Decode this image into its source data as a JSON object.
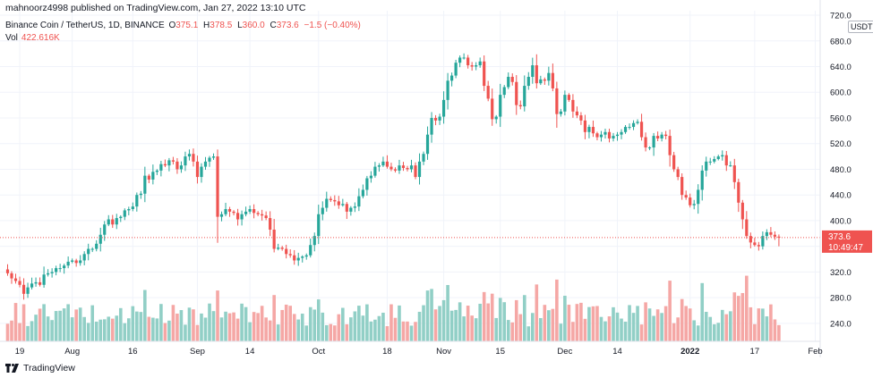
{
  "header": {
    "caption": "mahnoorz4998 published on TradingView.com, Jan 27, 2022 13:10 UTC"
  },
  "legend": {
    "symbol": "Binance Coin / TetherUS, 1D, BINANCE",
    "o_label": "O",
    "o_value": "375.1",
    "h_label": "H",
    "h_value": "378.5",
    "l_label": "L",
    "l_value": "360.0",
    "c_label": "C",
    "c_value": "373.6",
    "change": "−1.5 (−0.40%)",
    "vol_label": "Vol",
    "vol_value": "422.616K"
  },
  "price_axis": {
    "currency": "USDT",
    "last_price": "373.6",
    "countdown": "10:49:47"
  },
  "branding": {
    "name": "TradingView"
  },
  "colors": {
    "up": "#26a69a",
    "down": "#ef5350",
    "vol_up": "#91cfc6",
    "vol_down": "#f5a7a5",
    "grid": "#f0f3fa",
    "axis_text": "#131722"
  },
  "chart_data": {
    "type": "candlestick",
    "symbol": "BNBUSDT",
    "timeframe": "1D",
    "y_range": [
      212,
      727
    ],
    "y_ticks": [
      240,
      280,
      320,
      360,
      400,
      440,
      480,
      520,
      560,
      600,
      640,
      680,
      720
    ],
    "x_ticks": [
      {
        "label": "19",
        "date": "2021-07-19"
      },
      {
        "label": "Aug",
        "date": "2021-08-01"
      },
      {
        "label": "16",
        "date": "2021-08-16"
      },
      {
        "label": "Sep",
        "date": "2021-09-01"
      },
      {
        "label": "14",
        "date": "2021-09-14"
      },
      {
        "label": "Oct",
        "date": "2021-10-01"
      },
      {
        "label": "18",
        "date": "2021-10-18"
      },
      {
        "label": "Nov",
        "date": "2021-11-01"
      },
      {
        "label": "15",
        "date": "2021-11-15"
      },
      {
        "label": "Dec",
        "date": "2021-12-01"
      },
      {
        "label": "14",
        "date": "2021-12-14"
      },
      {
        "label": "2022",
        "date": "2022-01-01"
      },
      {
        "label": "17",
        "date": "2022-01-17"
      },
      {
        "label": "Feb",
        "date": "2022-02-01"
      }
    ],
    "start_date": "2021-07-16",
    "closes": [
      318,
      310,
      306,
      300,
      286,
      296,
      302,
      304,
      300,
      316,
      318,
      320,
      326,
      326,
      330,
      336,
      338,
      334,
      338,
      348,
      356,
      356,
      364,
      378,
      394,
      402,
      394,
      404,
      406,
      416,
      418,
      422,
      440,
      442,
      470,
      464,
      476,
      478,
      488,
      486,
      494,
      492,
      480,
      486,
      500,
      504,
      492,
      468,
      484,
      492,
      498,
      500,
      406,
      410,
      418,
      414,
      412,
      402,
      410,
      414,
      418,
      412,
      410,
      408,
      404,
      386,
      356,
      358,
      356,
      348,
      346,
      338,
      342,
      344,
      346,
      362,
      376,
      410,
      420,
      434,
      432,
      430,
      424,
      426,
      414,
      420,
      422,
      438,
      448,
      466,
      470,
      484,
      486,
      492,
      484,
      480,
      478,
      486,
      482,
      480,
      486,
      468,
      492,
      504,
      534,
      560,
      556,
      562,
      588,
      618,
      626,
      646,
      654,
      654,
      642,
      640,
      642,
      648,
      610,
      590,
      558,
      562,
      596,
      608,
      624,
      616,
      580,
      578,
      610,
      624,
      642,
      614,
      620,
      618,
      630,
      606,
      566,
      570,
      596,
      588,
      570,
      564,
      556,
      538,
      546,
      536,
      530,
      534,
      538,
      528,
      532,
      534,
      538,
      546,
      546,
      552,
      554,
      530,
      514,
      514,
      532,
      528,
      534,
      532,
      502,
      480,
      468,
      440,
      436,
      424,
      426,
      448,
      478,
      492,
      492,
      496,
      500,
      502,
      486,
      486,
      460,
      428,
      402,
      376,
      366,
      362,
      360,
      376,
      382,
      378,
      375.1,
      373.6
    ],
    "last_ohlc": {
      "open": 375.1,
      "high": 378.5,
      "low": 360.0,
      "close": 373.6
    },
    "volume_last": "422.616K"
  }
}
